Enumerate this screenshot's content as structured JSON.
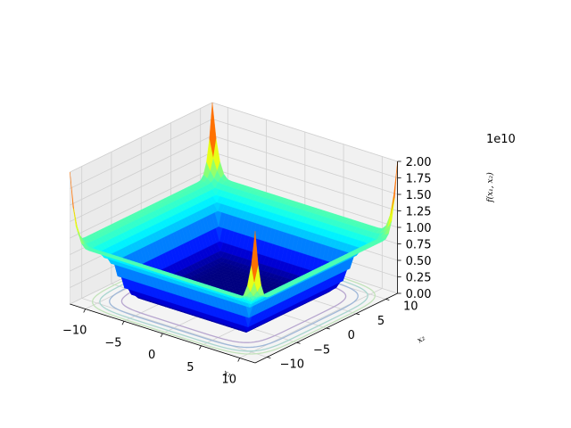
{
  "chart_data": {
    "type": "surface3d",
    "title": "",
    "xlabel": "x₁",
    "ylabel": "x₂",
    "zlabel": "f(x₁, x₂)",
    "z_offset_text": "1e10",
    "xlim": [
      -12,
      12
    ],
    "ylim": [
      -12,
      12
    ],
    "zlim": [
      0,
      20000000000.0
    ],
    "xticks": [
      "−10",
      "−5",
      "0",
      "5",
      "10"
    ],
    "yticks": [
      "−10",
      "−5",
      "0",
      "5",
      "10"
    ],
    "zticks": [
      "0.00",
      "0.25",
      "0.50",
      "0.75",
      "1.00",
      "1.25",
      "1.50",
      "1.75",
      "2.00"
    ],
    "colormap": "jet",
    "grid": true,
    "surface": {
      "x_range": [
        -12,
        12
      ],
      "y_range": [
        -12,
        12
      ],
      "peak_value": 20000000000.0,
      "flat_rim_value": 9000000000.0,
      "floor_value": 0
    },
    "contours_on_floor": true
  }
}
